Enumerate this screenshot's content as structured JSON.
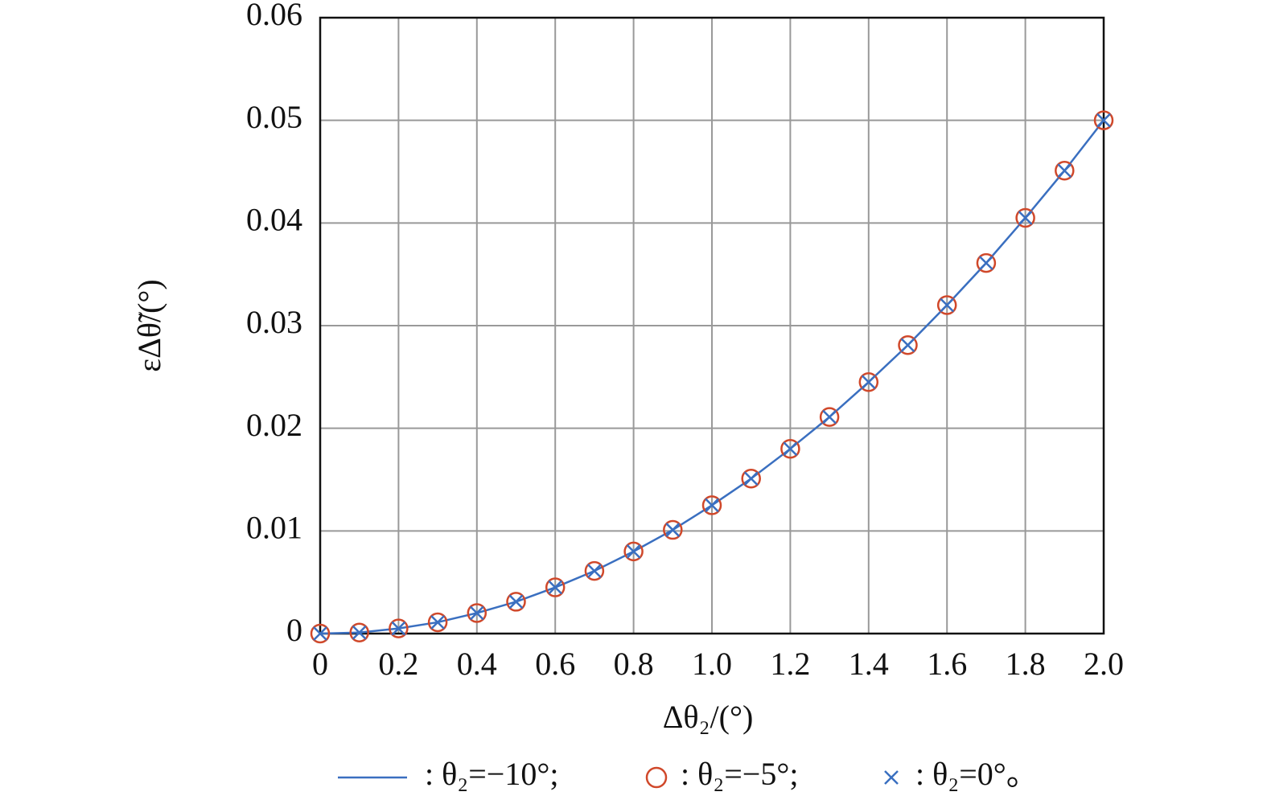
{
  "chart_data": {
    "type": "line",
    "xlabel": "Δθ₂/(°)",
    "ylabel": "εΔθ̃/(°)",
    "x": [
      0,
      0.1,
      0.2,
      0.3,
      0.4,
      0.5,
      0.6,
      0.7,
      0.8,
      0.9,
      1.0,
      1.1,
      1.2,
      1.3,
      1.4,
      1.5,
      1.6,
      1.7,
      1.8,
      1.9,
      2.0
    ],
    "series": [
      {
        "name": ": θ₂=−10°;",
        "color": "#3a6fc0",
        "marker": "none",
        "values": [
          0,
          0.0001,
          0.0005,
          0.0011,
          0.002,
          0.0031,
          0.0045,
          0.0061,
          0.008,
          0.0101,
          0.0125,
          0.0151,
          0.018,
          0.0211,
          0.0245,
          0.0281,
          0.032,
          0.0361,
          0.0405,
          0.0451,
          0.05
        ]
      },
      {
        "name": ": θ₂=−5°;",
        "color": "#d0482a",
        "marker": "circle",
        "values": [
          0,
          0.0001,
          0.0005,
          0.0011,
          0.002,
          0.0031,
          0.0045,
          0.0061,
          0.008,
          0.0101,
          0.0125,
          0.0151,
          0.018,
          0.0211,
          0.0245,
          0.0281,
          0.032,
          0.0361,
          0.0405,
          0.0451,
          0.05
        ]
      },
      {
        "name": ": θ₂=0°。",
        "color": "#3a6fc0",
        "marker": "cross",
        "values": [
          0,
          0.0001,
          0.0005,
          0.0011,
          0.002,
          0.0031,
          0.0045,
          0.0061,
          0.008,
          0.0101,
          0.0125,
          0.0151,
          0.018,
          0.0211,
          0.0245,
          0.0281,
          0.032,
          0.0361,
          0.0405,
          0.0451,
          0.05
        ]
      }
    ],
    "xlim": [
      0,
      2
    ],
    "xticks": [
      0,
      0.2,
      0.4,
      0.6,
      0.8,
      {
        "value": 1,
        "label": "1.0"
      },
      1.2,
      1.4,
      1.6,
      1.8,
      {
        "value": 2,
        "label": "2.0"
      }
    ],
    "ylim": [
      0,
      0.06
    ],
    "yticks": [
      0,
      0.01,
      0.02,
      0.03,
      0.04,
      0.05,
      0.06
    ],
    "grid": true,
    "legend": "bottom"
  }
}
